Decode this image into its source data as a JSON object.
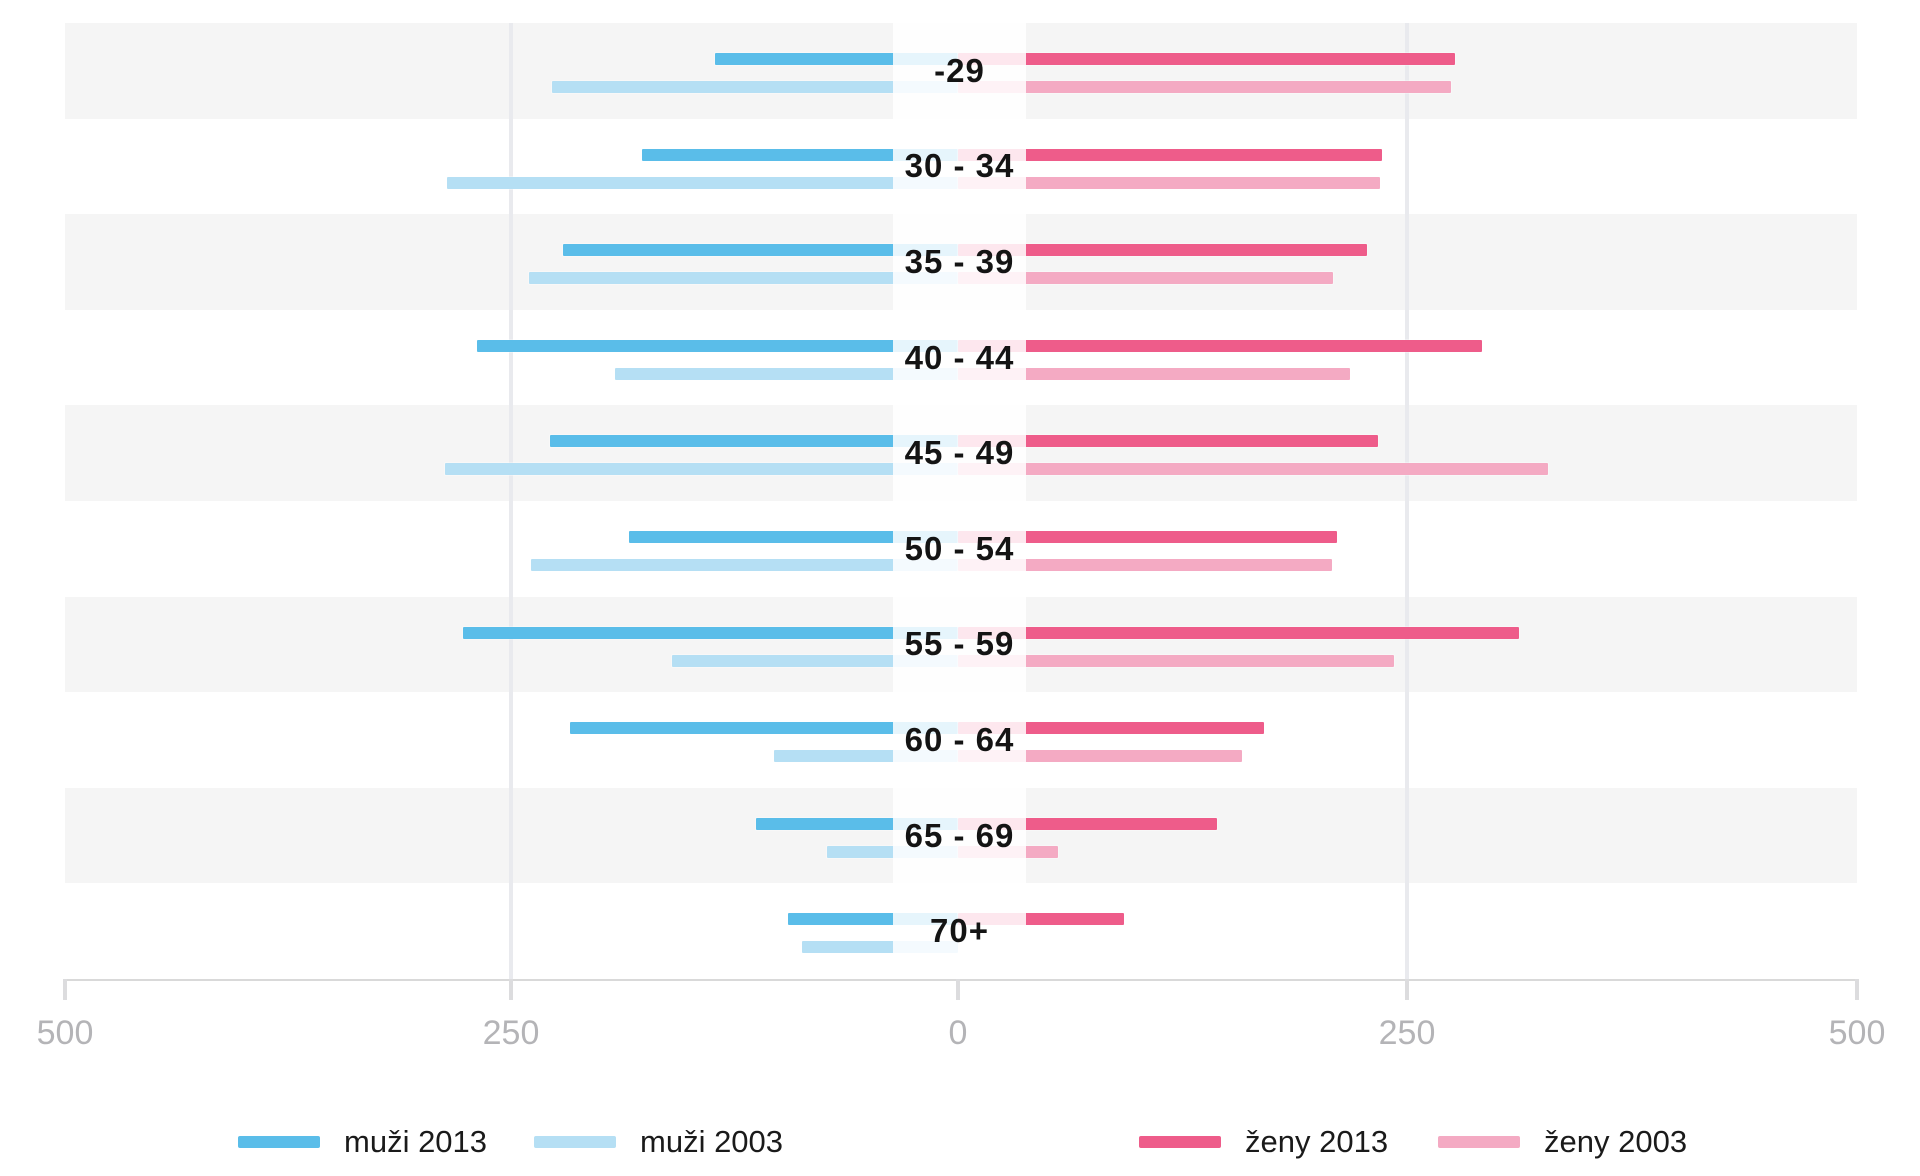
{
  "chart_data": {
    "type": "bar",
    "variant": "diverging-pyramid",
    "title": "",
    "xlabel": "",
    "ylabel": "",
    "categories": [
      "-29",
      "30 - 34",
      "35 - 39",
      "40 - 44",
      "45 - 49",
      "50 - 54",
      "55 - 59",
      "60 - 64",
      "65 - 69",
      "70+"
    ],
    "series": [
      {
        "name": "muži 2013",
        "side": "left",
        "color": "#5abde9",
        "values": [
          136,
          177,
          221,
          269,
          228,
          184,
          277,
          217,
          113,
          95
        ]
      },
      {
        "name": "muži 2003",
        "side": "left",
        "color": "#b5dff4",
        "values": [
          227,
          286,
          240,
          192,
          287,
          239,
          160,
          103,
          73,
          87
        ]
      },
      {
        "name": "ženy 2013",
        "side": "right",
        "color": "#ee5c8a",
        "values": [
          278,
          237,
          229,
          293,
          235,
          212,
          314,
          171,
          145,
          93
        ]
      },
      {
        "name": "ženy 2003",
        "side": "right",
        "color": "#f4aac3",
        "values": [
          276,
          236,
          210,
          219,
          330,
          209,
          244,
          159,
          56,
          0
        ]
      }
    ],
    "x_axis": {
      "tick_labels": [
        "500",
        "250",
        "0",
        "250",
        "500"
      ],
      "tick_values": [
        -500,
        -250,
        0,
        250,
        500
      ],
      "range": [
        -500,
        500
      ],
      "gridlines_at": [
        -250,
        250
      ],
      "grid": true
    },
    "legend": {
      "position": "bottom",
      "items": [
        "muži 2013",
        "muži 2003",
        "ženy 2013",
        "ženy 2003"
      ]
    },
    "row_striping": true,
    "colors": {
      "band": "#f5f5f5",
      "gridline": "#e9eaee",
      "axis_line": "#d9d9d9",
      "tick_label": "#b4b4b7",
      "category_label": "#141414",
      "legend_text": "#1a1a1a",
      "background": "#ffffff"
    }
  }
}
